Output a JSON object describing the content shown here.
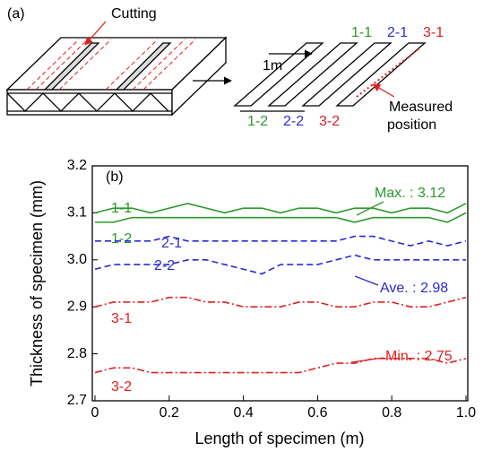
{
  "diagram": {
    "panel_label": "(a)",
    "cutting": "Cutting",
    "length": "1m",
    "strips": [
      {
        "text": "1-1",
        "color": "#2a9a2a"
      },
      {
        "text": "2-1",
        "color": "#2b2bd0"
      },
      {
        "text": "3-1",
        "color": "#e02020"
      },
      {
        "text": "1-2",
        "color": "#2a9a2a"
      },
      {
        "text": "2-2",
        "color": "#2b2bd0"
      },
      {
        "text": "3-2",
        "color": "#e02020"
      }
    ],
    "measured": [
      "Measured",
      "position"
    ]
  },
  "chart_data": {
    "type": "line",
    "panel_label": "(b)",
    "x_label": "Length of specimen (m)",
    "y_label": "Thickness of specimen (mm)",
    "xlim": [
      0,
      1
    ],
    "ylim": [
      2.7,
      3.2
    ],
    "xticks": [
      0,
      0.2,
      0.4,
      0.6,
      0.8,
      {
        "value": 1,
        "label": "1.0"
      }
    ],
    "yticks": [
      2.7,
      2.8,
      2.9,
      {
        "value": 3,
        "label": "3.0"
      },
      3.1,
      3.2
    ],
    "x": [
      0,
      0.05,
      0.1,
      0.15,
      0.2,
      0.25,
      0.3,
      0.35,
      0.4,
      0.45,
      0.5,
      0.55,
      0.6,
      0.65,
      0.7,
      0.75,
      0.8,
      0.85,
      0.9,
      0.95,
      1
    ],
    "series": [
      {
        "name": "1-1",
        "color": "#2a9a2a",
        "style": "solid",
        "values": [
          3.1,
          3.11,
          3.11,
          3.1,
          3.11,
          3.12,
          3.11,
          3.1,
          3.11,
          3.11,
          3.1,
          3.11,
          3.11,
          3.1,
          3.11,
          3.11,
          3.1,
          3.11,
          3.11,
          3.1,
          3.12
        ]
      },
      {
        "name": "1-2",
        "color": "#2a9a2a",
        "style": "solid",
        "values": [
          3.08,
          3.08,
          3.09,
          3.09,
          3.09,
          3.09,
          3.09,
          3.09,
          3.09,
          3.09,
          3.09,
          3.09,
          3.09,
          3.09,
          3.08,
          3.09,
          3.09,
          3.09,
          3.09,
          3.08,
          3.1
        ]
      },
      {
        "name": "2-1",
        "color": "#2b2bd0",
        "style": "dashed",
        "values": [
          3.04,
          3.04,
          3.04,
          3.04,
          3.05,
          3.04,
          3.04,
          3.04,
          3.04,
          3.04,
          3.04,
          3.04,
          3.04,
          3.04,
          3.05,
          3.05,
          3.04,
          3.03,
          3.04,
          3.03,
          3.04
        ]
      },
      {
        "name": "2-2",
        "color": "#2b2bd0",
        "style": "dashed",
        "values": [
          2.98,
          2.99,
          2.99,
          2.99,
          2.99,
          3.0,
          3.0,
          2.99,
          2.98,
          2.97,
          2.99,
          2.99,
          2.99,
          3.0,
          3.01,
          3.0,
          3.0,
          3.0,
          3.0,
          3.0,
          3.0
        ]
      },
      {
        "name": "3-1",
        "color": "#e02020",
        "style": "dashdot",
        "values": [
          2.9,
          2.91,
          2.91,
          2.91,
          2.92,
          2.92,
          2.91,
          2.91,
          2.9,
          2.9,
          2.9,
          2.91,
          2.91,
          2.9,
          2.9,
          2.91,
          2.91,
          2.9,
          2.9,
          2.91,
          2.92
        ]
      },
      {
        "name": "3-2",
        "color": "#e02020",
        "style": "dashdot",
        "values": [
          2.76,
          2.77,
          2.77,
          2.76,
          2.76,
          2.76,
          2.76,
          2.76,
          2.76,
          2.76,
          2.76,
          2.76,
          2.77,
          2.78,
          2.78,
          2.79,
          2.79,
          2.79,
          2.79,
          2.78,
          2.79
        ]
      }
    ],
    "annotations": [
      {
        "text": "Max. : 3.12",
        "color": "#2a9a2a"
      },
      {
        "text": "Ave. : 2.98",
        "color": "#2b2bd0"
      },
      {
        "text": "Min. : 2.75",
        "color": "#e02020"
      }
    ]
  }
}
